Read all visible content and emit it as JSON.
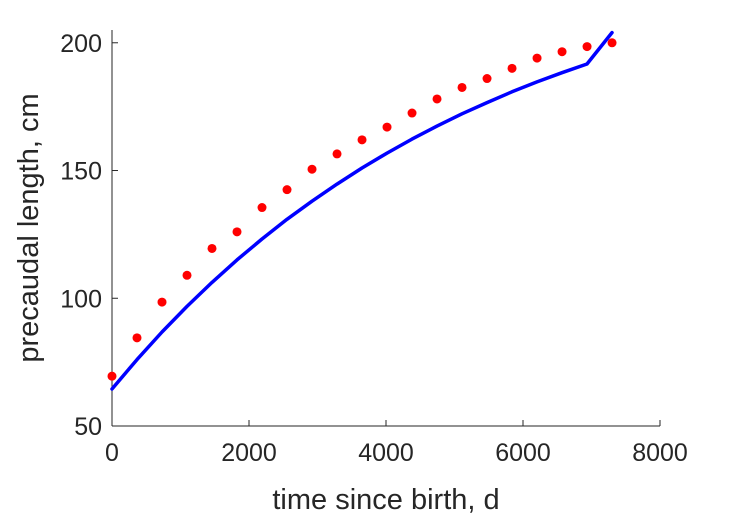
{
  "chart_data": {
    "type": "scatter",
    "title": "",
    "xlabel": "time since birth, d",
    "ylabel": "precaudal length, cm",
    "xlim": [
      0,
      8000
    ],
    "ylim": [
      50,
      205
    ],
    "xticks": [
      0,
      2000,
      4000,
      6000,
      8000
    ],
    "yticks": [
      50,
      100,
      150,
      200
    ],
    "xtick_labels": [
      "0",
      "2000",
      "4000",
      "6000",
      "8000"
    ],
    "ytick_labels": [
      "50",
      "100",
      "150",
      "200"
    ],
    "grid": false,
    "legend": "none",
    "series": [
      {
        "kind": "points",
        "color": "#ff0000",
        "x": [
          0,
          365,
          730,
          1095,
          1460,
          1825,
          2190,
          2555,
          2920,
          3285,
          3650,
          4015,
          4380,
          4745,
          5110,
          5475,
          5840,
          6205,
          6570,
          6935,
          7300
        ],
        "y": [
          69.5,
          84.5,
          98.5,
          109,
          119.5,
          126,
          135.5,
          142.5,
          150.5,
          156.5,
          162,
          167,
          172.5,
          178,
          182.5,
          186,
          190,
          194,
          196.5,
          198.5,
          200
        ]
      },
      {
        "kind": "line",
        "color": "#0000ff",
        "x": [
          0,
          365,
          730,
          1095,
          1460,
          1825,
          2190,
          2555,
          2920,
          3285,
          3650,
          4015,
          4380,
          4745,
          5110,
          5475,
          5840,
          6205,
          6570,
          6935,
          7300
        ],
        "y": [
          64.5,
          76,
          86.8,
          96.8,
          106.2,
          115,
          123.2,
          130.9,
          138,
          144.7,
          151,
          156.8,
          162.3,
          167.4,
          172.2,
          176.6,
          180.8,
          184.7,
          188.3,
          191.7,
          204
        ]
      }
    ]
  }
}
